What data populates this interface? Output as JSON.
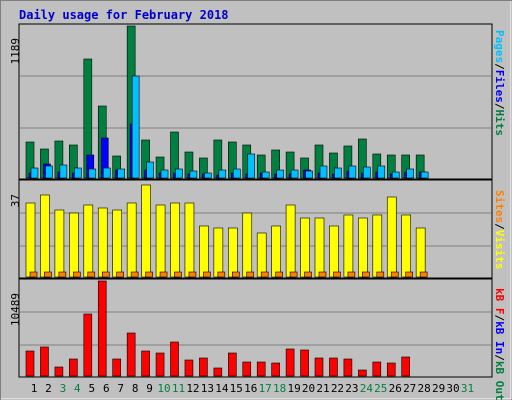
{
  "title": "Daily usage for February 2018",
  "colors": {
    "background": "#c0c0c0",
    "title": "#0000cc",
    "hits": "#008040",
    "files": "#0000ff",
    "pages": "#00c0ff",
    "visits": "#ffff00",
    "sites": "#ff8000",
    "kbin": "#ff0000",
    "weekend_day": "#008040",
    "weekday_day": "#000000"
  },
  "chart_data": [
    {
      "type": "bar",
      "panel": "top",
      "ymax_label": "1189",
      "ymax": 1189,
      "grid": true,
      "legend": [
        {
          "key": "pages",
          "text": "Pages"
        },
        {
          "key": "sep",
          "text": "/"
        },
        {
          "key": "files",
          "text": "Files"
        },
        {
          "key": "sep",
          "text": "/"
        },
        {
          "key": "hits",
          "text": "Hits"
        }
      ],
      "series": [
        {
          "name": "Hits",
          "values": [
            285,
            228,
            289,
            262,
            932,
            565,
            175,
            1189,
            300,
            166,
            359,
            206,
            158,
            296,
            284,
            261,
            180,
            216,
            207,
            155,
            257,
            195,
            248,
            306,
            191,
            181,
            181,
            181,
            0,
            0,
            0
          ]
        },
        {
          "name": "Files",
          "values": [
            40,
            111,
            46,
            36,
            180,
            316,
            60,
            419,
            61,
            38,
            36,
            29,
            34,
            26,
            40,
            30,
            38,
            30,
            33,
            61,
            38,
            33,
            51,
            42,
            48,
            34,
            45,
            47,
            0,
            0,
            0
          ]
        },
        {
          "name": "Pages",
          "values": [
            76,
            93,
            101,
            76,
            74,
            79,
            70,
            800,
            125,
            61,
            72,
            54,
            40,
            66,
            72,
            191,
            46,
            66,
            63,
            55,
            93,
            79,
            96,
            83,
            92,
            50,
            72,
            47,
            0,
            0,
            0
          ]
        }
      ]
    },
    {
      "type": "bar",
      "panel": "middle",
      "ymax_label": "37",
      "ymax": 37,
      "grid": true,
      "legend": [
        {
          "key": "sites",
          "text": "Sites"
        },
        {
          "key": "sep",
          "text": "/"
        },
        {
          "key": "visits",
          "text": "Visits"
        }
      ],
      "series": [
        {
          "name": "Visits",
          "values": [
            29,
            32,
            26,
            25,
            28,
            27,
            26,
            29,
            36,
            28,
            29,
            29,
            20,
            19,
            19,
            25,
            17,
            20,
            28,
            23,
            23,
            20,
            24,
            23,
            24,
            31,
            24,
            19,
            0,
            0,
            0
          ]
        },
        {
          "name": "Sites",
          "values": [
            1,
            1,
            1,
            1,
            1,
            1,
            1,
            1,
            1,
            1,
            1,
            1,
            1,
            1,
            1,
            1,
            1,
            1,
            1,
            1,
            1,
            1,
            1,
            1,
            1,
            1,
            1,
            1,
            0,
            0,
            0
          ]
        }
      ]
    },
    {
      "type": "bar",
      "panel": "bottom",
      "ymax_label": "10489",
      "ymax": 10489,
      "grid": true,
      "legend": [
        {
          "key": "kbin",
          "text": "kB F"
        },
        {
          "key": "sep",
          "text": "/"
        },
        {
          "key": "kbout",
          "text": "kB In"
        },
        {
          "key": "sep",
          "text": "/"
        },
        {
          "key": "kbfiles",
          "text": "kB Out"
        }
      ],
      "series": [
        {
          "name": "kB F",
          "values": [
            2720,
            3230,
            980,
            1850,
            6830,
            10489,
            1930,
            4700,
            2760,
            2500,
            3750,
            1760,
            2030,
            840,
            2530,
            1590,
            1520,
            1390,
            2980,
            2870,
            1950,
            1950,
            1850,
            680,
            1580,
            1450,
            2140,
            0,
            0,
            0,
            0
          ]
        }
      ]
    }
  ],
  "days": [
    {
      "label": "1",
      "weekend": false
    },
    {
      "label": "2",
      "weekend": false
    },
    {
      "label": "3",
      "weekend": true
    },
    {
      "label": "4",
      "weekend": true
    },
    {
      "label": "5",
      "weekend": false
    },
    {
      "label": "6",
      "weekend": false
    },
    {
      "label": "7",
      "weekend": false
    },
    {
      "label": "8",
      "weekend": false
    },
    {
      "label": "9",
      "weekend": false
    },
    {
      "label": "10",
      "weekend": true
    },
    {
      "label": "11",
      "weekend": true
    },
    {
      "label": "12",
      "weekend": false
    },
    {
      "label": "13",
      "weekend": false
    },
    {
      "label": "14",
      "weekend": false
    },
    {
      "label": "15",
      "weekend": false
    },
    {
      "label": "16",
      "weekend": false
    },
    {
      "label": "17",
      "weekend": true
    },
    {
      "label": "18",
      "weekend": true
    },
    {
      "label": "19",
      "weekend": false
    },
    {
      "label": "20",
      "weekend": false
    },
    {
      "label": "21",
      "weekend": false
    },
    {
      "label": "22",
      "weekend": false
    },
    {
      "label": "23",
      "weekend": false
    },
    {
      "label": "24",
      "weekend": true
    },
    {
      "label": "25",
      "weekend": true
    },
    {
      "label": "26",
      "weekend": false
    },
    {
      "label": "27",
      "weekend": false
    },
    {
      "label": "28",
      "weekend": false
    },
    {
      "label": "29",
      "weekend": false
    },
    {
      "label": "30",
      "weekend": false
    },
    {
      "label": "31",
      "weekend": true
    }
  ]
}
